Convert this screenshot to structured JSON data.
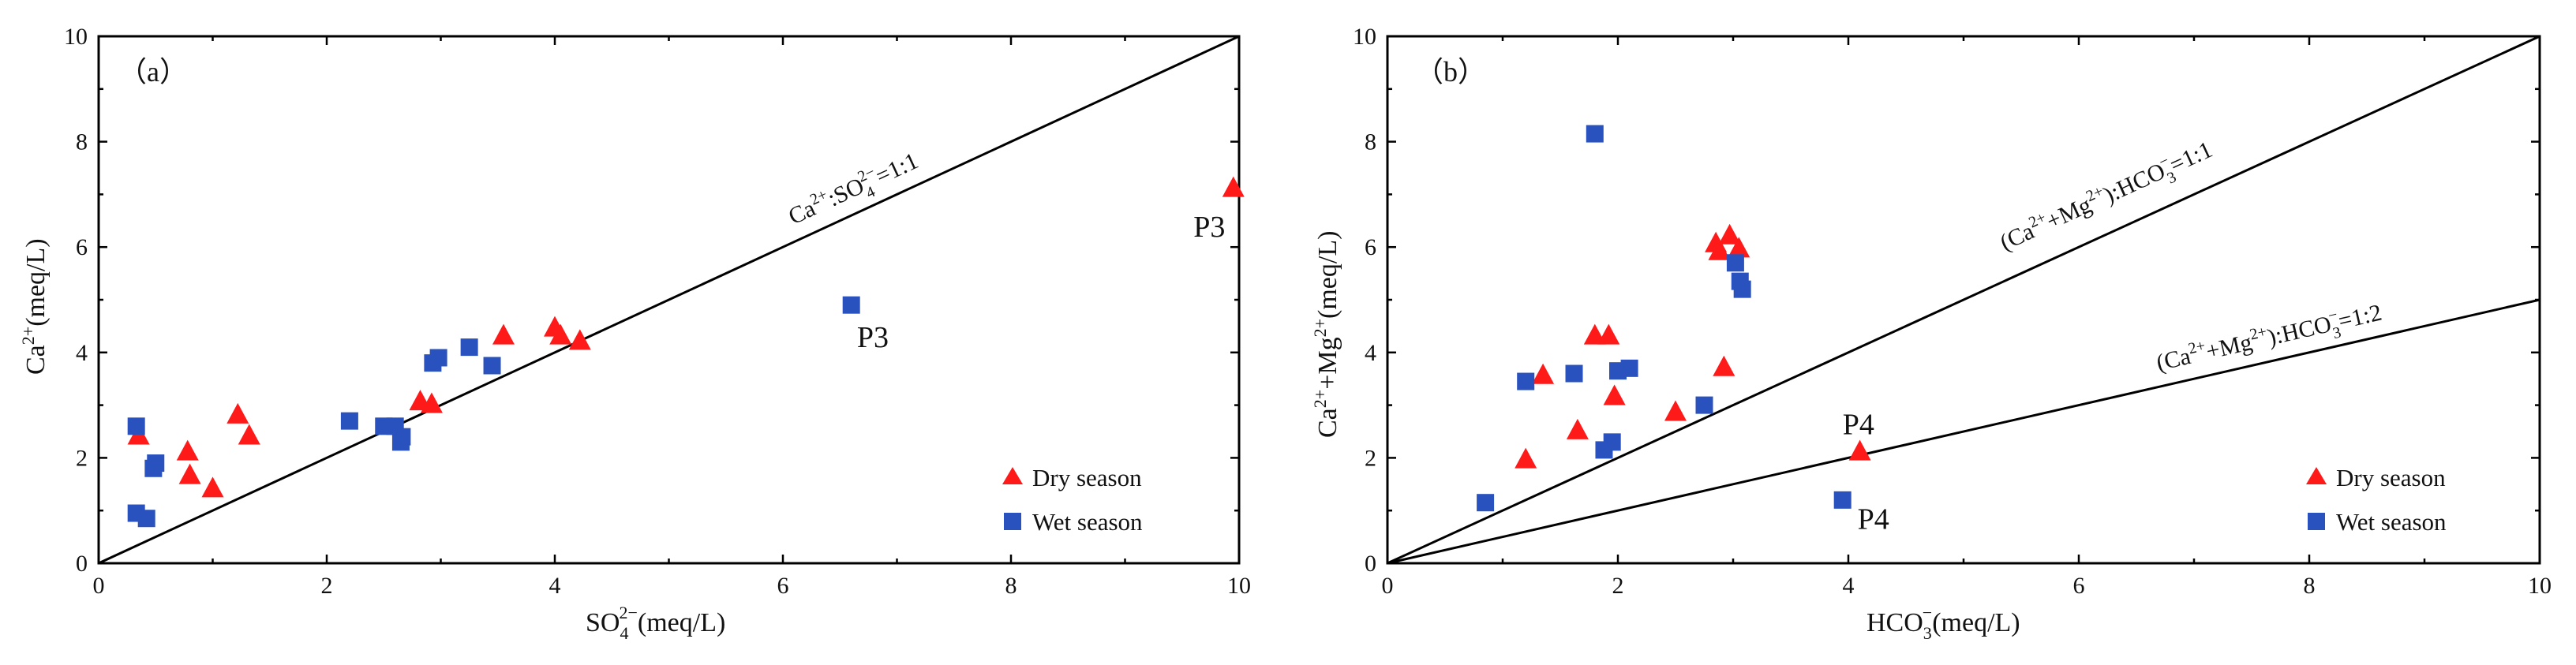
{
  "chart_data": [
    {
      "type": "scatter",
      "panel_label": "（a）",
      "xlabel_base": "SO",
      "xlabel_sub": "4",
      "xlabel_sup": "2−",
      "xlabel_unit": "(meq/L)",
      "ylabel_base": "Ca",
      "ylabel_sup": "2+",
      "ylabel_unit": "(meq/L)",
      "xlim": [
        0,
        10
      ],
      "ylim": [
        0,
        10
      ],
      "xticks": [
        "0",
        "2",
        "4",
        "6",
        "8",
        "10"
      ],
      "yticks": [
        "0",
        "2",
        "4",
        "6",
        "8",
        "10"
      ],
      "legend": [
        "Dry season",
        "Wet season"
      ],
      "reference_lines": [
        {
          "slope": 1,
          "label_parts": [
            "Ca",
            "2+",
            ":SO",
            "4",
            "2−",
            "=1:1"
          ]
        }
      ],
      "series": [
        {
          "name": "Dry season",
          "marker": "triangle",
          "color": "#ff1a1a",
          "points": [
            [
              0.35,
              2.4
            ],
            [
              0.78,
              2.1
            ],
            [
              0.8,
              1.65
            ],
            [
              1.0,
              1.4
            ],
            [
              1.22,
              2.8
            ],
            [
              1.32,
              2.4
            ],
            [
              2.82,
              3.05
            ],
            [
              2.92,
              3.0
            ],
            [
              3.55,
              4.3
            ],
            [
              4.0,
              4.45
            ],
            [
              4.05,
              4.3
            ],
            [
              4.22,
              4.2
            ],
            [
              9.95,
              7.1
            ]
          ]
        },
        {
          "name": "Wet season",
          "marker": "square",
          "color": "#2a52be",
          "points": [
            [
              0.33,
              2.6
            ],
            [
              0.33,
              0.95
            ],
            [
              0.42,
              0.85
            ],
            [
              0.48,
              1.8
            ],
            [
              0.5,
              1.9
            ],
            [
              2.2,
              2.7
            ],
            [
              2.5,
              2.6
            ],
            [
              2.6,
              2.6
            ],
            [
              2.65,
              2.3
            ],
            [
              2.66,
              2.4
            ],
            [
              2.93,
              3.8
            ],
            [
              2.98,
              3.9
            ],
            [
              3.25,
              4.1
            ],
            [
              3.45,
              3.75
            ],
            [
              6.6,
              4.9
            ]
          ]
        }
      ],
      "annotations": [
        {
          "text": "P3",
          "x": 9.6,
          "y": 6.2
        },
        {
          "text": "P3",
          "x": 6.65,
          "y": 4.1
        }
      ]
    },
    {
      "type": "scatter",
      "panel_label": "（b）",
      "xlabel_base": "HCO",
      "xlabel_sub": "3",
      "xlabel_sup": "−",
      "xlabel_unit": "(meq/L)",
      "ylabel_parts": [
        "Ca",
        "2+",
        "+Mg",
        "2+",
        "(meq/L)"
      ],
      "xlim": [
        0,
        10
      ],
      "ylim": [
        0,
        10
      ],
      "xticks": [
        "0",
        "2",
        "4",
        "6",
        "8",
        "10"
      ],
      "yticks": [
        "0",
        "2",
        "4",
        "6",
        "8",
        "10"
      ],
      "legend": [
        "Dry season",
        "Wet season"
      ],
      "reference_lines": [
        {
          "slope": 1,
          "label_parts": [
            "(Ca",
            "2+",
            "+Mg",
            "2+",
            "):HCO",
            "3",
            "−",
            "=1:1"
          ]
        },
        {
          "slope": 0.5,
          "label_parts": [
            "(Ca",
            "2+",
            "+Mg",
            "2+",
            "):HCO",
            "3",
            "−",
            "=1:2"
          ]
        }
      ],
      "series": [
        {
          "name": "Dry season",
          "marker": "triangle",
          "color": "#ff1a1a",
          "points": [
            [
              1.2,
              1.95
            ],
            [
              1.35,
              3.55
            ],
            [
              1.65,
              2.5
            ],
            [
              1.8,
              4.3
            ],
            [
              1.92,
              4.3
            ],
            [
              1.97,
              3.15
            ],
            [
              2.5,
              2.85
            ],
            [
              2.85,
              6.05
            ],
            [
              2.88,
              5.9
            ],
            [
              2.92,
              3.7
            ],
            [
              2.97,
              6.2
            ],
            [
              3.05,
              5.95
            ],
            [
              4.1,
              2.1
            ]
          ]
        },
        {
          "name": "Wet season",
          "marker": "square",
          "color": "#2a52be",
          "points": [
            [
              0.85,
              1.15
            ],
            [
              1.2,
              3.45
            ],
            [
              1.62,
              3.6
            ],
            [
              1.8,
              8.15
            ],
            [
              1.88,
              2.15
            ],
            [
              1.95,
              2.3
            ],
            [
              2.0,
              3.65
            ],
            [
              2.1,
              3.7
            ],
            [
              2.75,
              3.0
            ],
            [
              3.02,
              5.7
            ],
            [
              3.06,
              5.35
            ],
            [
              3.08,
              5.2
            ],
            [
              3.95,
              1.2
            ]
          ]
        }
      ],
      "annotations": [
        {
          "text": "P4",
          "x": 3.95,
          "y": 2.45
        },
        {
          "text": "P4",
          "x": 4.08,
          "y": 0.65
        }
      ]
    }
  ]
}
